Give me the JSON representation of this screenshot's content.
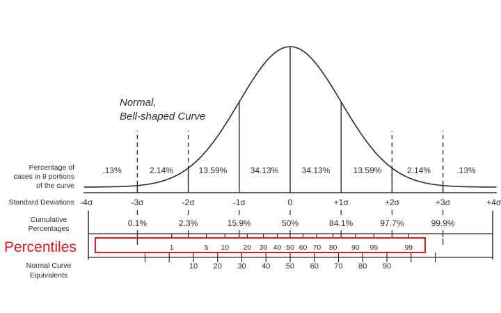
{
  "chart_data": {
    "type": "area",
    "title": "Normal, Bell-shaped Curve",
    "title_lines": [
      "Normal,",
      "Bell-shaped Curve"
    ],
    "standard_deviations": [
      "-4σ",
      "-3σ",
      "-2σ",
      "-1σ",
      "0",
      "+1σ",
      "+2σ",
      "+3σ",
      "+4σ"
    ],
    "portion_percentages": [
      ".13%",
      "2.14%",
      "13.59%",
      "34.13%",
      "34.13%",
      "13.59%",
      "2.14%",
      ".13%"
    ],
    "cumulative_percentages": [
      "0.1%",
      "2.3%",
      "15.9%",
      "50%",
      "84.1%",
      "97.7%",
      "99.9%"
    ],
    "percentiles": [
      "1",
      "5",
      "10",
      "20",
      "30",
      "40",
      "50",
      "60",
      "70",
      "80",
      "90",
      "95",
      "99"
    ],
    "normal_curve_equivalents": [
      "10",
      "20",
      "30",
      "40",
      "50",
      "60",
      "70",
      "80",
      "90"
    ],
    "xlim": [
      -4,
      4
    ],
    "grid": false,
    "row_labels": {
      "portions": [
        "Percentage of",
        "cases in 8 portions",
        "of the curve"
      ],
      "std_dev": "Standard Deviations",
      "cumulative": [
        "Cumulative",
        "Percentages"
      ],
      "percentiles": "Percentiles",
      "nce": [
        "Normal Curve",
        "Equivalents"
      ]
    },
    "colors": {
      "ink": "#2b2b2b",
      "highlight": "#e8141c"
    }
  }
}
